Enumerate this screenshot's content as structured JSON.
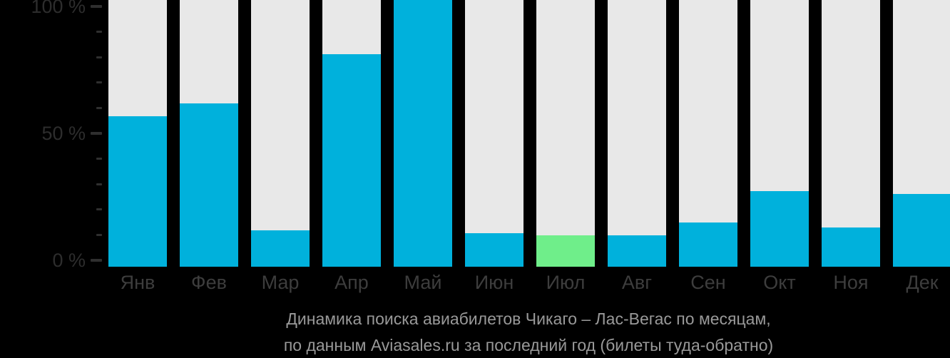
{
  "chart_data": {
    "type": "bar",
    "categories": [
      "Янв",
      "Фев",
      "Мар",
      "Апр",
      "Май",
      "Июн",
      "Июл",
      "Авг",
      "Сен",
      "Окт",
      "Ноя",
      "Дек"
    ],
    "values": [
      58,
      63,
      14,
      82,
      100,
      13,
      12,
      12,
      17,
      29,
      15,
      28
    ],
    "highlight_index": 6,
    "title": "Динамика поиска авиабилетов Чикаго – Лас-Вегас по месяцам,",
    "subtitle": "по данным Aviasales.ru за последний год (билеты туда-обратно)",
    "xlabel": "",
    "ylabel": "",
    "ylim": [
      0,
      100
    ],
    "ytick_labels": [
      {
        "value": 100,
        "label": "100 %"
      },
      {
        "value": 50,
        "label": "50 %"
      },
      {
        "value": 0,
        "label": "0 %"
      }
    ],
    "ytick_minor_step": 10,
    "grid": false,
    "legend": "none",
    "colors": {
      "background": "#000000",
      "column_track": "#e8e8e8",
      "bar": "#00b1dc",
      "bar_highlight": "#6fee8a",
      "axis_text": "#2d2d2d",
      "month_text": "#3d3d3d",
      "caption_text": "#999999"
    }
  }
}
